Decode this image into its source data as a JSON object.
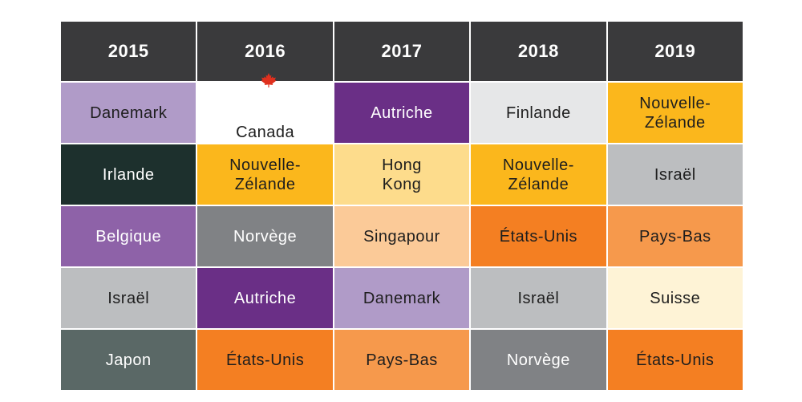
{
  "header": [
    "2015",
    "2016",
    "2017",
    "2018",
    "2019"
  ],
  "rows": [
    [
      {
        "label": "Danemark",
        "bg": "#b09bc8",
        "fg": "#1e1e1e"
      },
      {
        "label": "Canada",
        "bg": "#ffffff",
        "fg": "#1e1e1e",
        "icon": "maple-leaf-icon"
      },
      {
        "label": "Autriche",
        "bg": "#6a2f86",
        "fg": "#ffffff"
      },
      {
        "label": "Finlande",
        "bg": "#e6e7e8",
        "fg": "#1e1e1e"
      },
      {
        "label": "Nouvelle-\nZélande",
        "bg": "#fbb71c",
        "fg": "#1e1e1e"
      }
    ],
    [
      {
        "label": "Irlande",
        "bg": "#1d302d",
        "fg": "#ffffff"
      },
      {
        "label": "Nouvelle-\nZélande",
        "bg": "#fbb71c",
        "fg": "#1e1e1e"
      },
      {
        "label": "Hong\nKong",
        "bg": "#fddc8c",
        "fg": "#1e1e1e"
      },
      {
        "label": "Nouvelle-\nZélande",
        "bg": "#fbb71c",
        "fg": "#1e1e1e"
      },
      {
        "label": "Israël",
        "bg": "#bcbec0",
        "fg": "#1e1e1e"
      }
    ],
    [
      {
        "label": "Belgique",
        "bg": "#8e62a8",
        "fg": "#ffffff"
      },
      {
        "label": "Norvège",
        "bg": "#808285",
        "fg": "#ffffff"
      },
      {
        "label": "Singapour",
        "bg": "#fbca98",
        "fg": "#1e1e1e"
      },
      {
        "label": "États-Unis",
        "bg": "#f47f22",
        "fg": "#1e1e1e"
      },
      {
        "label": "Pays-Bas",
        "bg": "#f6994c",
        "fg": "#1e1e1e"
      }
    ],
    [
      {
        "label": "Israël",
        "bg": "#bcbec0",
        "fg": "#1e1e1e"
      },
      {
        "label": "Autriche",
        "bg": "#6a2f86",
        "fg": "#ffffff"
      },
      {
        "label": "Danemark",
        "bg": "#b09bc8",
        "fg": "#1e1e1e"
      },
      {
        "label": "Israël",
        "bg": "#bcbec0",
        "fg": "#1e1e1e"
      },
      {
        "label": "Suisse",
        "bg": "#fef3d6",
        "fg": "#1e1e1e"
      }
    ],
    [
      {
        "label": "Japon",
        "bg": "#5a6866",
        "fg": "#ffffff"
      },
      {
        "label": "États-Unis",
        "bg": "#f47f22",
        "fg": "#1e1e1e"
      },
      {
        "label": "Pays-Bas",
        "bg": "#f6994c",
        "fg": "#1e1e1e"
      },
      {
        "label": "Norvège",
        "bg": "#808285",
        "fg": "#ffffff"
      },
      {
        "label": "États-Unis",
        "bg": "#f47f22",
        "fg": "#1e1e1e"
      }
    ]
  ]
}
